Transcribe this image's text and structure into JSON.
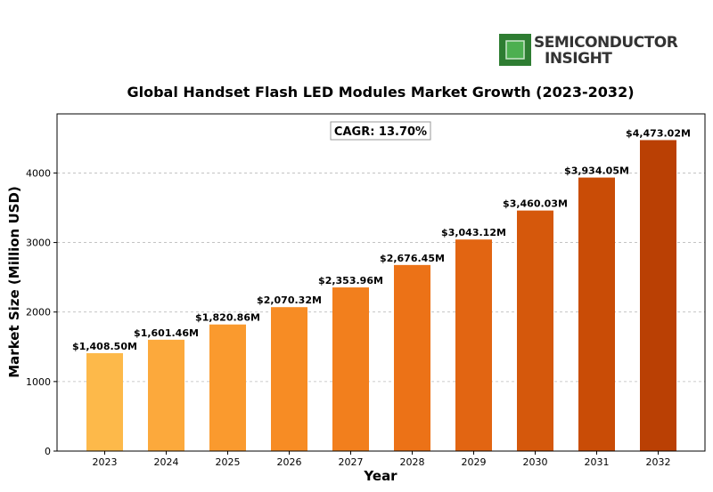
{
  "logo": {
    "line1": "SEMICONDUCTOR",
    "line2": "INSIGHT",
    "chip_color": "#3a9a3a"
  },
  "chart_data": {
    "type": "bar",
    "title": "Global Handset Flash LED Modules Market Growth (2023-2032)",
    "xlabel": "Year",
    "ylabel": "Market Size (Million USD)",
    "categories": [
      "2023",
      "2024",
      "2025",
      "2026",
      "2027",
      "2028",
      "2029",
      "2030",
      "2031",
      "2032"
    ],
    "values": [
      1408.5,
      1601.46,
      1820.86,
      2070.32,
      2353.96,
      2676.45,
      3043.12,
      3460.03,
      3934.05,
      4473.02
    ],
    "data_labels": [
      "$1,408.50M",
      "$1,601.46M",
      "$1,820.86M",
      "$2,070.32M",
      "$2,353.96M",
      "$2,676.45M",
      "$3,043.12M",
      "$3,460.03M",
      "$3,934.05M",
      "$4,473.02M"
    ],
    "bar_colors": [
      "#fdb94a",
      "#fca93c",
      "#fa9a2e",
      "#f78c24",
      "#f27f1d",
      "#ec7217",
      "#e26512",
      "#d5580c",
      "#c94c06",
      "#ba4004"
    ],
    "yticks": [
      0,
      1000,
      2000,
      3000,
      4000
    ],
    "ylim": [
      0,
      4850
    ],
    "grid": true,
    "annotation": "CAGR: 13.70%"
  }
}
